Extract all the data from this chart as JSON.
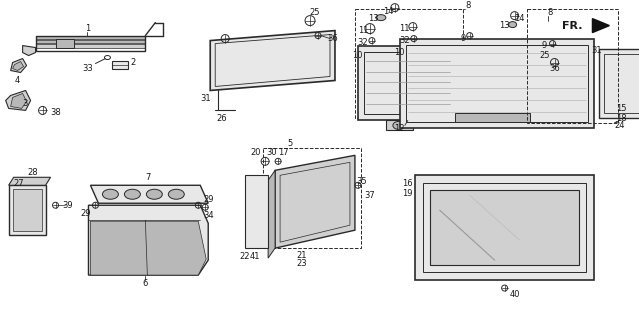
{
  "bg_color": "#ffffff",
  "line_color": "#2a2a2a",
  "text_color": "#1a1a1a",
  "fr_text": "FR.",
  "gray_fill": "#d0d0d0",
  "gray_light": "#e8e8e8",
  "gray_mid": "#b8b8b8"
}
